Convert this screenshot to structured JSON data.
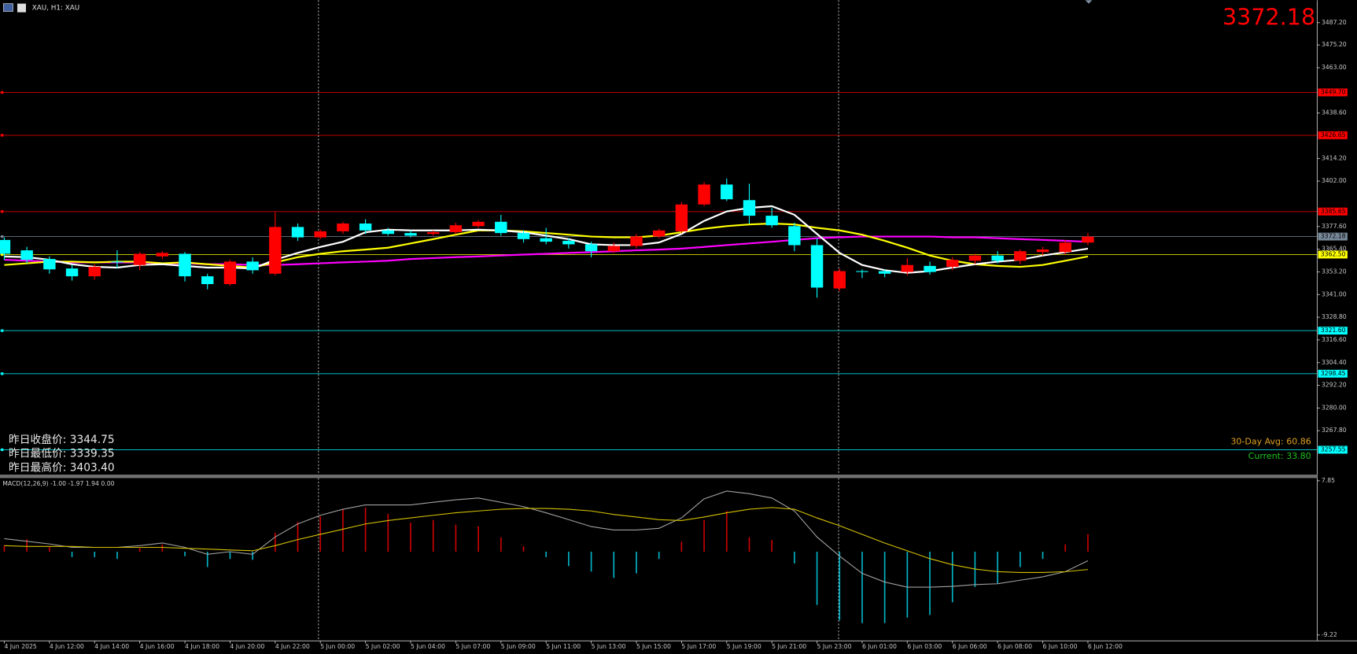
{
  "header": {
    "symbol": "XAU, H1: XAU"
  },
  "price_display": "3372.18",
  "yesterday": [
    "昨日收盘价: 3344.75",
    "昨日最低价: 3339.35",
    "昨日最高价: 3403.40"
  ],
  "volatility": [
    "30-Day Avg: 60.86",
    "Current: 33.80"
  ],
  "chart_data": [
    {
      "type": "candlestick",
      "up_color": "#ff0000",
      "down_color": "#00ffff",
      "open": [
        3370.36,
        3364.78,
        3360.12,
        3355.01,
        3350.82,
        3358.73,
        3356.87,
        3361.52,
        3362.92,
        3350.82,
        3346.62,
        3358.73,
        3352.21,
        3377.34,
        3371.75,
        3375.01,
        3379.2,
        3375.47,
        3374.08,
        3373.61,
        3374.54,
        3377.8,
        3380.13,
        3374.08,
        3371.29,
        3369.89,
        3368.03,
        3364.31,
        3367.1,
        3372.22,
        3375.01,
        3389.44,
        3400.15,
        3391.77,
        3383.39,
        3377.8,
        3367.57,
        3344.3,
        3353.61,
        3353.61,
        3353.14,
        3356.4,
        3355.94,
        3359.19,
        3361.99,
        3359.19,
        3363.85,
        3363.85,
        3368.96
      ],
      "high": [
        3371.75,
        3366.64,
        3361.52,
        3356.87,
        3357.33,
        3364.78,
        3363.85,
        3364.31,
        3363.85,
        3352.21,
        3359.66,
        3361.05,
        3385.25,
        3379.2,
        3375.94,
        3380.13,
        3381.53,
        3376.87,
        3375.47,
        3375.47,
        3379.67,
        3381.06,
        3383.86,
        3375.47,
        3376.87,
        3371.29,
        3369.43,
        3368.96,
        3373.61,
        3376.41,
        3390.84,
        3401.55,
        3403.4,
        3400.61,
        3387.58,
        3379.67,
        3371.29,
        3355.01,
        3354.54,
        3354.54,
        3360.59,
        3358.73,
        3361.05,
        3362.92,
        3364.31,
        3365.24,
        3366.64,
        3370.36,
        3374.08
      ],
      "low": [
        3359.66,
        3357.8,
        3352.21,
        3348.49,
        3348.95,
        3355.01,
        3354.07,
        3360.12,
        3348.02,
        3343.83,
        3345.69,
        3352.21,
        3351.28,
        3369.89,
        3370.82,
        3373.61,
        3373.61,
        3372.68,
        3371.75,
        3372.68,
        3373.61,
        3376.87,
        3372.68,
        3368.96,
        3368.03,
        3365.71,
        3361.05,
        3363.38,
        3365.71,
        3371.29,
        3374.08,
        3388.51,
        3391.31,
        3379.2,
        3376.87,
        3364.31,
        3339.35,
        3342.9,
        3349.88,
        3350.35,
        3351.28,
        3351.75,
        3354.07,
        3357.33,
        3357.8,
        3357.33,
        3361.99,
        3362.45,
        3367.57
      ],
      "close": [
        3362.92,
        3359.66,
        3354.54,
        3350.82,
        3355.94,
        3358.26,
        3362.92,
        3363.38,
        3350.82,
        3346.62,
        3358.73,
        3354.07,
        3377.34,
        3371.75,
        3375.01,
        3379.2,
        3375.47,
        3373.61,
        3372.68,
        3374.54,
        3378.27,
        3380.13,
        3374.08,
        3370.82,
        3369.43,
        3368.03,
        3364.31,
        3367.1,
        3372.22,
        3375.47,
        3389.44,
        3400.15,
        3392.24,
        3383.39,
        3378.27,
        3367.57,
        3344.75,
        3353.61,
        3353.14,
        3352.21,
        3356.87,
        3353.14,
        3359.66,
        3361.99,
        3359.19,
        3364.31,
        3365.24,
        3368.96,
        3372.18
      ],
      "series": [
        {
          "color": "#ff00ff",
          "values": [
            3359.7,
            3359.2,
            3358.7,
            3358.3,
            3358.3,
            3358.3,
            3358.3,
            3357.8,
            3357.8,
            3357.3,
            3357.3,
            3356.9,
            3356.9,
            3357.3,
            3357.8,
            3358.3,
            3358.7,
            3359.2,
            3360.1,
            3360.6,
            3361.1,
            3361.5,
            3362.0,
            3362.5,
            3362.9,
            3363.4,
            3363.8,
            3364.3,
            3364.8,
            3365.2,
            3365.7,
            3366.6,
            3367.6,
            3368.5,
            3369.4,
            3370.4,
            3371.3,
            3371.8,
            3372.2,
            3372.2,
            3372.2,
            3372.2,
            3371.8,
            3371.8,
            3371.3,
            3370.8,
            3370.4,
            3369.9,
            3369.4
          ]
        },
        {
          "color": "#ffff00",
          "values": [
            3356.9,
            3357.8,
            3358.7,
            3358.7,
            3358.3,
            3358.7,
            3358.7,
            3357.8,
            3358.3,
            3357.3,
            3356.4,
            3355.5,
            3358.3,
            3361.1,
            3362.9,
            3364.3,
            3365.2,
            3366.2,
            3368.5,
            3370.8,
            3373.2,
            3375.5,
            3375.5,
            3375.0,
            3374.1,
            3373.2,
            3372.2,
            3371.8,
            3371.8,
            3372.7,
            3374.5,
            3376.4,
            3377.8,
            3378.7,
            3379.2,
            3378.7,
            3376.9,
            3375.5,
            3373.2,
            3369.9,
            3366.2,
            3362.0,
            3359.2,
            3357.3,
            3356.4,
            3355.9,
            3356.9,
            3359.2,
            3361.5
          ]
        },
        {
          "color": "#ffffff",
          "values": [
            3361.5,
            3361.1,
            3359.7,
            3357.3,
            3355.9,
            3355.5,
            3356.9,
            3357.3,
            3356.4,
            3355.5,
            3355.5,
            3355.0,
            3359.7,
            3363.4,
            3366.6,
            3369.4,
            3374.5,
            3375.9,
            3375.5,
            3375.5,
            3375.5,
            3375.9,
            3375.5,
            3374.5,
            3372.7,
            3370.8,
            3368.0,
            3367.6,
            3367.6,
            3369.0,
            3373.6,
            3380.6,
            3385.7,
            3387.6,
            3388.5,
            3383.9,
            3373.6,
            3363.4,
            3356.9,
            3354.1,
            3352.7,
            3353.6,
            3355.5,
            3357.3,
            3358.7,
            3359.7,
            3362.0,
            3363.8,
            3365.7
          ]
        }
      ],
      "levels": [
        {
          "value": 3449.7,
          "label": "3449.70",
          "color": "#ff0000"
        },
        {
          "value": 3426.65,
          "label": "3426.65",
          "color": "#ff0000"
        },
        {
          "value": 3385.65,
          "label": "3385.65",
          "color": "#ff0000"
        },
        {
          "value": 3372.18,
          "label": "3372.18",
          "color": "#778899"
        },
        {
          "value": 3362.5,
          "label": "3362.50",
          "color": "#ffff00"
        },
        {
          "value": 3321.6,
          "label": "3321.60",
          "color": "#00ffff"
        },
        {
          "value": 3298.45,
          "label": "3298.45",
          "color": "#00ffff"
        },
        {
          "value": 3257.55,
          "label": "3257.55",
          "color": "#00ffff"
        }
      ],
      "xlim": [
        -0.19,
        58.08
      ],
      "ylim": [
        3244.18,
        3499.3
      ],
      "yticks": [
        {
          "value": 3487.2,
          "label": "3487.20"
        },
        {
          "value": 3475.2,
          "label": "3475.20"
        },
        {
          "value": 3463.0,
          "label": "3463.00"
        },
        {
          "value": 3438.6,
          "label": "3438.60"
        },
        {
          "value": 3414.2,
          "label": "3414.20"
        },
        {
          "value": 3402.0,
          "label": "3402.00"
        },
        {
          "value": 3377.6,
          "label": "3377.60"
        },
        {
          "value": 3365.4,
          "label": "3365.40"
        },
        {
          "value": 3353.2,
          "label": "3353.20"
        },
        {
          "value": 3341.0,
          "label": "3341.00"
        },
        {
          "value": 3328.8,
          "label": "3328.80"
        },
        {
          "value": 3316.6,
          "label": "3316.60"
        },
        {
          "value": 3304.4,
          "label": "3304.40"
        },
        {
          "value": 3292.2,
          "label": "3292.20"
        },
        {
          "value": 3280.0,
          "label": "3280.00"
        },
        {
          "value": 3267.8,
          "label": "3267.80"
        }
      ],
      "xticks": [
        {
          "value": 0,
          "label": "4 Jun 2025"
        },
        {
          "value": 2,
          "label": "4 Jun 12:00"
        },
        {
          "value": 4,
          "label": "4 Jun 14:00"
        },
        {
          "value": 6,
          "label": "4 Jun 16:00"
        },
        {
          "value": 8,
          "label": "4 Jun 18:00"
        },
        {
          "value": 10,
          "label": "4 Jun 20:00"
        },
        {
          "value": 12,
          "label": "4 Jun 22:00"
        },
        {
          "value": 14,
          "label": "5 Jun 00:00"
        },
        {
          "value": 16,
          "label": "5 Jun 02:00"
        },
        {
          "value": 18,
          "label": "5 Jun 04:00"
        },
        {
          "value": 20,
          "label": "5 Jun 07:00"
        },
        {
          "value": 22,
          "label": "5 Jun 09:00"
        },
        {
          "value": 24,
          "label": "5 Jun 11:00"
        },
        {
          "value": 26,
          "label": "5 Jun 13:00"
        },
        {
          "value": 28,
          "label": "5 Jun 15:00"
        },
        {
          "value": 30,
          "label": "5 Jun 17:00"
        },
        {
          "value": 32,
          "label": "5 Jun 19:00"
        },
        {
          "value": 34,
          "label": "5 Jun 21:00"
        },
        {
          "value": 36,
          "label": "5 Jun 23:00"
        },
        {
          "value": 38,
          "label": "6 Jun 01:00"
        },
        {
          "value": 40,
          "label": "6 Jun 03:00"
        },
        {
          "value": 42,
          "label": "6 Jun 06:00"
        },
        {
          "value": 44,
          "label": "6 Jun 08:00"
        },
        {
          "value": 46,
          "label": "6 Jun 10:00"
        },
        {
          "value": 48,
          "label": "6 Jun 12:00"
        }
      ]
    },
    {
      "type": "macd",
      "title": "MACD(12,26,9) -1.00 -1.97 1.94 0.00",
      "positive_color": "#cc0000",
      "negative_color": "#00b4c8",
      "values": [
        0.7,
        1.4,
        0.5,
        -0.6,
        -0.6,
        -0.8,
        0.4,
        0.8,
        -0.5,
        -1.7,
        -0.8,
        -0.9,
        2.1,
        3.3,
        3.9,
        4.7,
        4.9,
        4.2,
        3.2,
        3.5,
        3.0,
        2.8,
        1.6,
        0.6,
        -0.6,
        -1.6,
        -2.2,
        -2.9,
        -2.4,
        -0.8,
        1.1,
        3.5,
        4.5,
        1.6,
        1.3,
        -1.3,
        -5.9,
        -7.6,
        -7.9,
        -7.9,
        -7.3,
        -7.0,
        -5.6,
        -3.9,
        -3.5,
        -1.7,
        -0.8,
        0.8,
        1.94
      ],
      "series": [
        {
          "color": "#a0a0a0",
          "values": [
            1.44,
            1.15,
            0.86,
            0.48,
            0.48,
            0.48,
            0.67,
            0.96,
            0.48,
            -0.29,
            0,
            -0.29,
            1.63,
            3.07,
            4.03,
            4.7,
            5.18,
            5.18,
            5.18,
            5.47,
            5.75,
            5.94,
            5.47,
            4.99,
            4.31,
            3.55,
            2.78,
            2.4,
            2.4,
            2.59,
            3.74,
            5.85,
            6.71,
            6.42,
            5.94,
            4.51,
            1.63,
            -0.48,
            -2.4,
            -3.36,
            -3.93,
            -3.93,
            -3.84,
            -3.64,
            -3.55,
            -3.16,
            -2.78,
            -2.21,
            -1.0
          ]
        },
        {
          "color": "#d4c000",
          "values": [
            0.67,
            0.58,
            0.58,
            0.58,
            0.48,
            0.48,
            0.48,
            0.48,
            0.38,
            0.29,
            0.19,
            0.1,
            0.67,
            1.34,
            1.92,
            2.49,
            3.07,
            3.45,
            3.74,
            4.03,
            4.31,
            4.51,
            4.7,
            4.79,
            4.79,
            4.7,
            4.51,
            4.12,
            3.84,
            3.55,
            3.45,
            3.84,
            4.31,
            4.7,
            4.89,
            4.7,
            3.74,
            2.88,
            1.92,
            0.96,
            0.1,
            -0.77,
            -1.44,
            -1.92,
            -2.21,
            -2.3,
            -2.3,
            -2.21,
            -1.97
          ]
        }
      ],
      "ylim": [
        -9.68,
        8.15
      ],
      "yticks": [
        7.85,
        -9.22
      ]
    }
  ]
}
